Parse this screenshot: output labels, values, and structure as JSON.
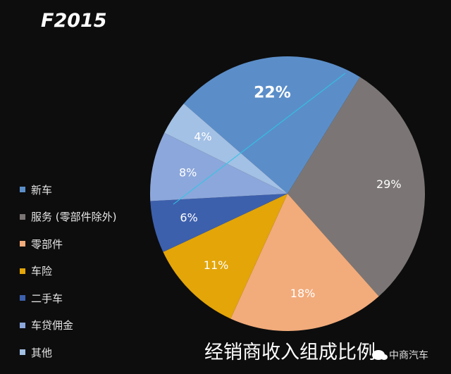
{
  "chart_data": {
    "type": "pie",
    "title": "F2015",
    "caption": "经销商收入组成比例",
    "legend_position": "left",
    "slices": [
      {
        "name": "新车",
        "value": 22,
        "label": "22%",
        "color": "#5b8ec9"
      },
      {
        "name": "服务 (零部件除外)",
        "value": 29,
        "label": "29%",
        "color": "#7b7675"
      },
      {
        "name": "零部件",
        "value": 18,
        "label": "18%",
        "color": "#f2ab7b"
      },
      {
        "name": "车险",
        "value": 11,
        "label": "11%",
        "color": "#e3a508"
      },
      {
        "name": "二手车",
        "value": 6,
        "label": "6%",
        "color": "#3d60ad"
      },
      {
        "name": "车贷佣金",
        "value": 8,
        "label": "8%",
        "color": "#8ca7db"
      },
      {
        "name": "其他",
        "value": 4,
        "label": "4%",
        "color": "#a3c0e5"
      }
    ]
  },
  "watermark": {
    "text": "中商汽车",
    "icon": "wechat-icon"
  }
}
